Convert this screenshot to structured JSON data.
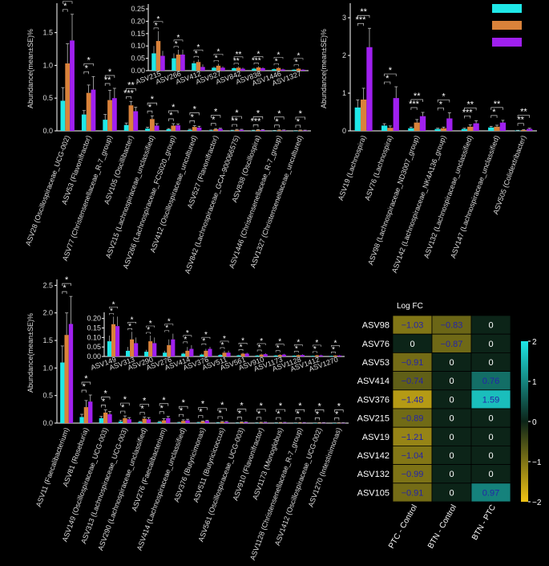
{
  "colors": {
    "control": "#1fe8e8",
    "ptc": "#d9823a",
    "btn": "#a020f0",
    "axis": "#ffffff",
    "bg": "#000000"
  },
  "legend_items": [
    "cyan",
    "orange",
    "purple"
  ],
  "chart_data": [
    {
      "type": "bar",
      "id": "panelA",
      "ylabel": "Abundance(mean±SE)%",
      "ylim": [
        0,
        1.9
      ],
      "yticks": [
        0.0,
        0.5,
        1.0,
        1.5
      ],
      "categories": [
        "ASV28 (Oscillospiraceae_UCG-002)",
        "ASV53 (Flavonifractor)",
        "ASV77 (Christensenellaceae_R-7_group)",
        "ASV105 (Oscillibacter)",
        "ASV215 (Lachnospiraceae_unclassified)",
        "ASV266 (Lachnospiraceae_FCS020_group)",
        "ASV412 (Oscillospiraceae_uncultured)",
        "ASV527 (Flavonifractor)",
        "ASV842 (Lachnospiraceae_GCA-900066575)",
        "ASV838 (Oscillospira)",
        "ASV1446 (Christensenellaceae_R-7_group)",
        "ASV1327 (Christensenellaceae_uncultured)"
      ],
      "series": [
        {
          "name": "Control",
          "values": [
            0.46,
            0.25,
            0.17,
            0.09,
            0.035,
            0.025,
            0.015,
            0.008,
            0.006,
            0.006,
            0.004,
            0.003
          ],
          "err": [
            0.2,
            0.06,
            0.08,
            0.03,
            0.02,
            0.01,
            0.01,
            0.005,
            0.004,
            0.004,
            0.003,
            0.002
          ]
        },
        {
          "name": "PTC",
          "values": [
            1.03,
            0.58,
            0.47,
            0.39,
            0.18,
            0.08,
            0.06,
            0.025,
            0.015,
            0.013,
            0.01,
            0.009
          ],
          "err": [
            0.3,
            0.12,
            0.15,
            0.06,
            0.05,
            0.03,
            0.02,
            0.01,
            0.008,
            0.006,
            0.005,
            0.004
          ]
        },
        {
          "name": "BTN",
          "values": [
            1.38,
            0.63,
            0.5,
            0.3,
            0.08,
            0.085,
            0.05,
            0.03,
            0.016,
            0.014,
            0.009,
            0.007
          ],
          "err": [
            0.4,
            0.2,
            0.15,
            0.06,
            0.03,
            0.02,
            0.02,
            0.01,
            0.008,
            0.006,
            0.005,
            0.004
          ]
        }
      ],
      "sig": [
        [
          "*",
          "*"
        ],
        [
          "*",
          "*"
        ],
        [
          "**",
          "*"
        ],
        [
          "***",
          "**"
        ],
        [
          "*",
          "*"
        ],
        [
          "*",
          "*"
        ],
        [
          "*",
          "*"
        ],
        [
          "*",
          "*"
        ],
        [
          "**",
          "*"
        ],
        [
          "***",
          "*"
        ],
        [
          "*",
          "*"
        ],
        [
          "*",
          "*"
        ]
      ],
      "inset": {
        "ylim": [
          0,
          0.26
        ],
        "yticks": [
          0.0,
          0.05,
          0.1,
          0.15,
          0.2,
          0.25
        ],
        "labels": [
          "ASV215",
          "ASV266",
          "ASV412",
          "ASV527",
          "ASV842",
          "ASV838",
          "ASV1446",
          "ASV1327"
        ],
        "series": [
          [
            0.07,
            0.05,
            0.03,
            0.012,
            0.01,
            0.008,
            0.006,
            0.004
          ],
          [
            0.12,
            0.065,
            0.035,
            0.02,
            0.012,
            0.013,
            0.011,
            0.008
          ],
          [
            0.06,
            0.065,
            0.015,
            0.012,
            0.008,
            0.01,
            0.005,
            0.004
          ]
        ],
        "err": [
          [
            0.03,
            0.02,
            0.01,
            0.005,
            0.004,
            0.004,
            0.003,
            0.002
          ],
          [
            0.04,
            0.02,
            0.01,
            0.008,
            0.005,
            0.005,
            0.004,
            0.003
          ],
          [
            0.02,
            0.02,
            0.01,
            0.005,
            0.004,
            0.004,
            0.003,
            0.002
          ]
        ],
        "sig": [
          [
            "*",
            "*"
          ],
          [
            "*",
            "*"
          ],
          [
            "*",
            "*"
          ],
          [
            "*",
            "*"
          ],
          [
            "**",
            "**"
          ],
          [
            "***",
            "*"
          ],
          [
            "*",
            "*"
          ],
          [
            "*",
            "*"
          ]
        ]
      }
    },
    {
      "type": "bar",
      "id": "panelB",
      "ylabel": "Abundance(mean±SE)%",
      "ylim": [
        0,
        3.3
      ],
      "yticks": [
        0,
        1,
        2,
        3
      ],
      "categories": [
        "ASV19 (Lachnospira)",
        "ASV76 (Lachnospira)",
        "ASV98 (Lachnospiraceae_ND3007_group)",
        "ASV142 (Lachnospiraceae_NK4A136_group)",
        "ASV132 (Lachnospiraceae_unclassified)",
        "ASV147 (Lachnospiraceae_unclassified)",
        "ASV505 (Colidextribacter)"
      ],
      "series": [
        {
          "name": "Control",
          "values": [
            0.62,
            0.14,
            0.07,
            0.05,
            0.05,
            0.09,
            0.01
          ],
          "err": [
            0.2,
            0.05,
            0.03,
            0.02,
            0.02,
            0.03,
            0.005
          ]
        },
        {
          "name": "PTC",
          "values": [
            0.83,
            0.08,
            0.22,
            0.07,
            0.11,
            0.11,
            0.02
          ],
          "err": [
            0.3,
            0.05,
            0.08,
            0.03,
            0.05,
            0.04,
            0.01
          ]
        },
        {
          "name": "BTN",
          "values": [
            2.22,
            0.87,
            0.39,
            0.33,
            0.2,
            0.22,
            0.05
          ],
          "err": [
            0.5,
            0.3,
            0.1,
            0.15,
            0.07,
            0.06,
            0.02
          ]
        }
      ],
      "sig": [
        [
          "***",
          "**"
        ],
        [
          "*",
          "*"
        ],
        [
          "***",
          "**"
        ],
        [
          "*",
          "*"
        ],
        [
          "***",
          "**"
        ],
        [
          "*",
          "**"
        ],
        [
          "**",
          "**"
        ]
      ]
    },
    {
      "type": "bar",
      "id": "panelC",
      "ylabel": "Abundance(mean±SE)%",
      "ylim": [
        0,
        2.55
      ],
      "yticks": [
        0.0,
        0.5,
        1.0,
        1.5,
        2.0,
        2.5
      ],
      "categories": [
        "ASV11 (Faecalibacterium)",
        "ASV81 (Roseburia)",
        "ASV149 (Oscillospiraceae_UCG-003)",
        "ASV313 (Lachnospiraceae_UCG-003)",
        "ASV290 (Lachnospiraceae_unclassified)",
        "ASV276 (Faecalibacterium)",
        "ASV414 (Lachnospiraceae_unclassified)",
        "ASV376 (Butyricimonas)",
        "ASV511 (Butyricicoccus)",
        "ASV561 (Oscillospiraceae_UCG-003)",
        "ASV910 (Flavonifractor)",
        "ASV1173 (Monoglobus)",
        "ASV1128 (Christensenellaceae_R-7_group)",
        "ASV1412 (Oscillospiraceae_UCG-002)",
        "ASV1270 (Intestinimonas)"
      ],
      "series": [
        {
          "name": "Control",
          "values": [
            1.1,
            0.11,
            0.09,
            0.03,
            0.02,
            0.02,
            0.01,
            0.01,
            0.008,
            0.006,
            0.005,
            0.005,
            0.004,
            0.003,
            0.003
          ],
          "err": [
            0.3,
            0.05,
            0.03,
            0.02,
            0.01,
            0.01,
            0.005,
            0.005,
            0.004,
            0.003,
            0.003,
            0.003,
            0.002,
            0.002,
            0.002
          ]
        },
        {
          "name": "PTC",
          "values": [
            1.6,
            0.29,
            0.19,
            0.09,
            0.08,
            0.05,
            0.04,
            0.03,
            0.02,
            0.015,
            0.01,
            0.008,
            0.007,
            0.006,
            0.005
          ],
          "err": [
            0.4,
            0.12,
            0.05,
            0.04,
            0.03,
            0.03,
            0.02,
            0.01,
            0.01,
            0.005,
            0.005,
            0.004,
            0.003,
            0.003,
            0.002
          ]
        },
        {
          "name": "BTN",
          "values": [
            1.8,
            0.39,
            0.16,
            0.07,
            0.07,
            0.09,
            0.05,
            0.04,
            0.02,
            0.015,
            0.012,
            0.01,
            0.008,
            0.006,
            0.005
          ],
          "err": [
            0.5,
            0.12,
            0.05,
            0.03,
            0.03,
            0.03,
            0.02,
            0.01,
            0.01,
            0.005,
            0.005,
            0.004,
            0.003,
            0.003,
            0.002
          ]
        }
      ],
      "sig": [
        [
          "*",
          "*"
        ],
        [
          "*",
          "*"
        ],
        [
          "*",
          "*"
        ],
        [
          "*",
          "*"
        ],
        [
          "*",
          "*"
        ],
        [
          "*",
          "*"
        ],
        [
          "*",
          "*"
        ],
        [
          "*",
          "*"
        ],
        [
          "*",
          "*"
        ],
        [
          "*",
          "*"
        ],
        [
          "*",
          "*"
        ],
        [
          "*",
          "*"
        ],
        [
          "*",
          "*"
        ],
        [
          "*",
          "*"
        ],
        [
          "*",
          "*"
        ]
      ],
      "inset": {
        "ylim": [
          0,
          0.22
        ],
        "yticks": [
          0.0,
          0.05,
          0.1,
          0.15,
          0.2
        ],
        "labels": [
          "ASV149",
          "ASV313",
          "ASV290",
          "ASV276",
          "ASV414",
          "ASV376",
          "ASV511",
          "ASV561",
          "ASV910",
          "ASV1173",
          "ASV1128",
          "ASV1412",
          "ASV1270"
        ],
        "series": [
          [
            0.08,
            0.03,
            0.025,
            0.02,
            0.015,
            0.01,
            0.008,
            0.006,
            0.005,
            0.005,
            0.004,
            0.003,
            0.003
          ],
          [
            0.17,
            0.09,
            0.08,
            0.06,
            0.03,
            0.03,
            0.02,
            0.015,
            0.01,
            0.008,
            0.007,
            0.006,
            0.005
          ],
          [
            0.16,
            0.07,
            0.07,
            0.09,
            0.04,
            0.04,
            0.02,
            0.015,
            0.012,
            0.01,
            0.008,
            0.006,
            0.005
          ]
        ],
        "err": [
          [
            0.03,
            0.02,
            0.01,
            0.01,
            0.005,
            0.005,
            0.004,
            0.003,
            0.003,
            0.003,
            0.002,
            0.002,
            0.002
          ],
          [
            0.04,
            0.04,
            0.03,
            0.03,
            0.02,
            0.01,
            0.01,
            0.005,
            0.005,
            0.004,
            0.003,
            0.003,
            0.002
          ],
          [
            0.05,
            0.03,
            0.03,
            0.03,
            0.02,
            0.01,
            0.01,
            0.005,
            0.005,
            0.004,
            0.003,
            0.003,
            0.002
          ]
        ],
        "sig": [
          [
            "*",
            "*"
          ],
          [
            "*",
            "*"
          ],
          [
            "*",
            "*"
          ],
          [
            "*",
            "*"
          ],
          [
            "*",
            "*"
          ],
          [
            "*",
            "*"
          ],
          [
            "*",
            "*"
          ],
          [
            "*",
            "*"
          ],
          [
            "*",
            "*"
          ],
          [
            "*",
            "*"
          ],
          [
            "*",
            "*"
          ],
          [
            "*",
            "*"
          ],
          [
            "*",
            "*"
          ]
        ]
      }
    },
    {
      "type": "heatmap",
      "id": "panelD",
      "title": "Log FC",
      "rows": [
        "ASV98",
        "ASV76",
        "ASV53",
        "ASV414",
        "ASV376",
        "ASV215",
        "ASV19",
        "ASV142",
        "ASV132",
        "ASV105"
      ],
      "cols": [
        "PTC - Control",
        "BTN - Control",
        "BTN - PTC"
      ],
      "values": [
        [
          -1.03,
          -0.83,
          0
        ],
        [
          0,
          -0.87,
          0
        ],
        [
          -0.91,
          0,
          0
        ],
        [
          -0.74,
          0,
          0.76
        ],
        [
          -1.48,
          0,
          1.59
        ],
        [
          -0.89,
          0,
          0
        ],
        [
          -1.21,
          0,
          0
        ],
        [
          -1.04,
          0,
          0
        ],
        [
          -0.99,
          0,
          0
        ],
        [
          -0.91,
          0,
          0.97
        ]
      ],
      "labels": [
        [
          "−1.03",
          "−0.83",
          "0"
        ],
        [
          "0",
          "−0.87",
          "0"
        ],
        [
          "−0.91",
          "0",
          "0"
        ],
        [
          "−0.74",
          "0",
          "0.76"
        ],
        [
          "−1.48",
          "0",
          "1.59"
        ],
        [
          "−0.89",
          "0",
          "0"
        ],
        [
          "−1.21",
          "0",
          "0"
        ],
        [
          "−1.04",
          "0",
          "0"
        ],
        [
          "−0.99",
          "0",
          "0"
        ],
        [
          "−0.91",
          "0",
          "0.97"
        ]
      ],
      "range": [
        -2,
        2
      ],
      "colorbar_ticks": [
        "2",
        "1",
        "0",
        "−1",
        "−2"
      ],
      "colorbar_values": [
        2,
        1,
        0,
        -1,
        -2
      ]
    }
  ]
}
